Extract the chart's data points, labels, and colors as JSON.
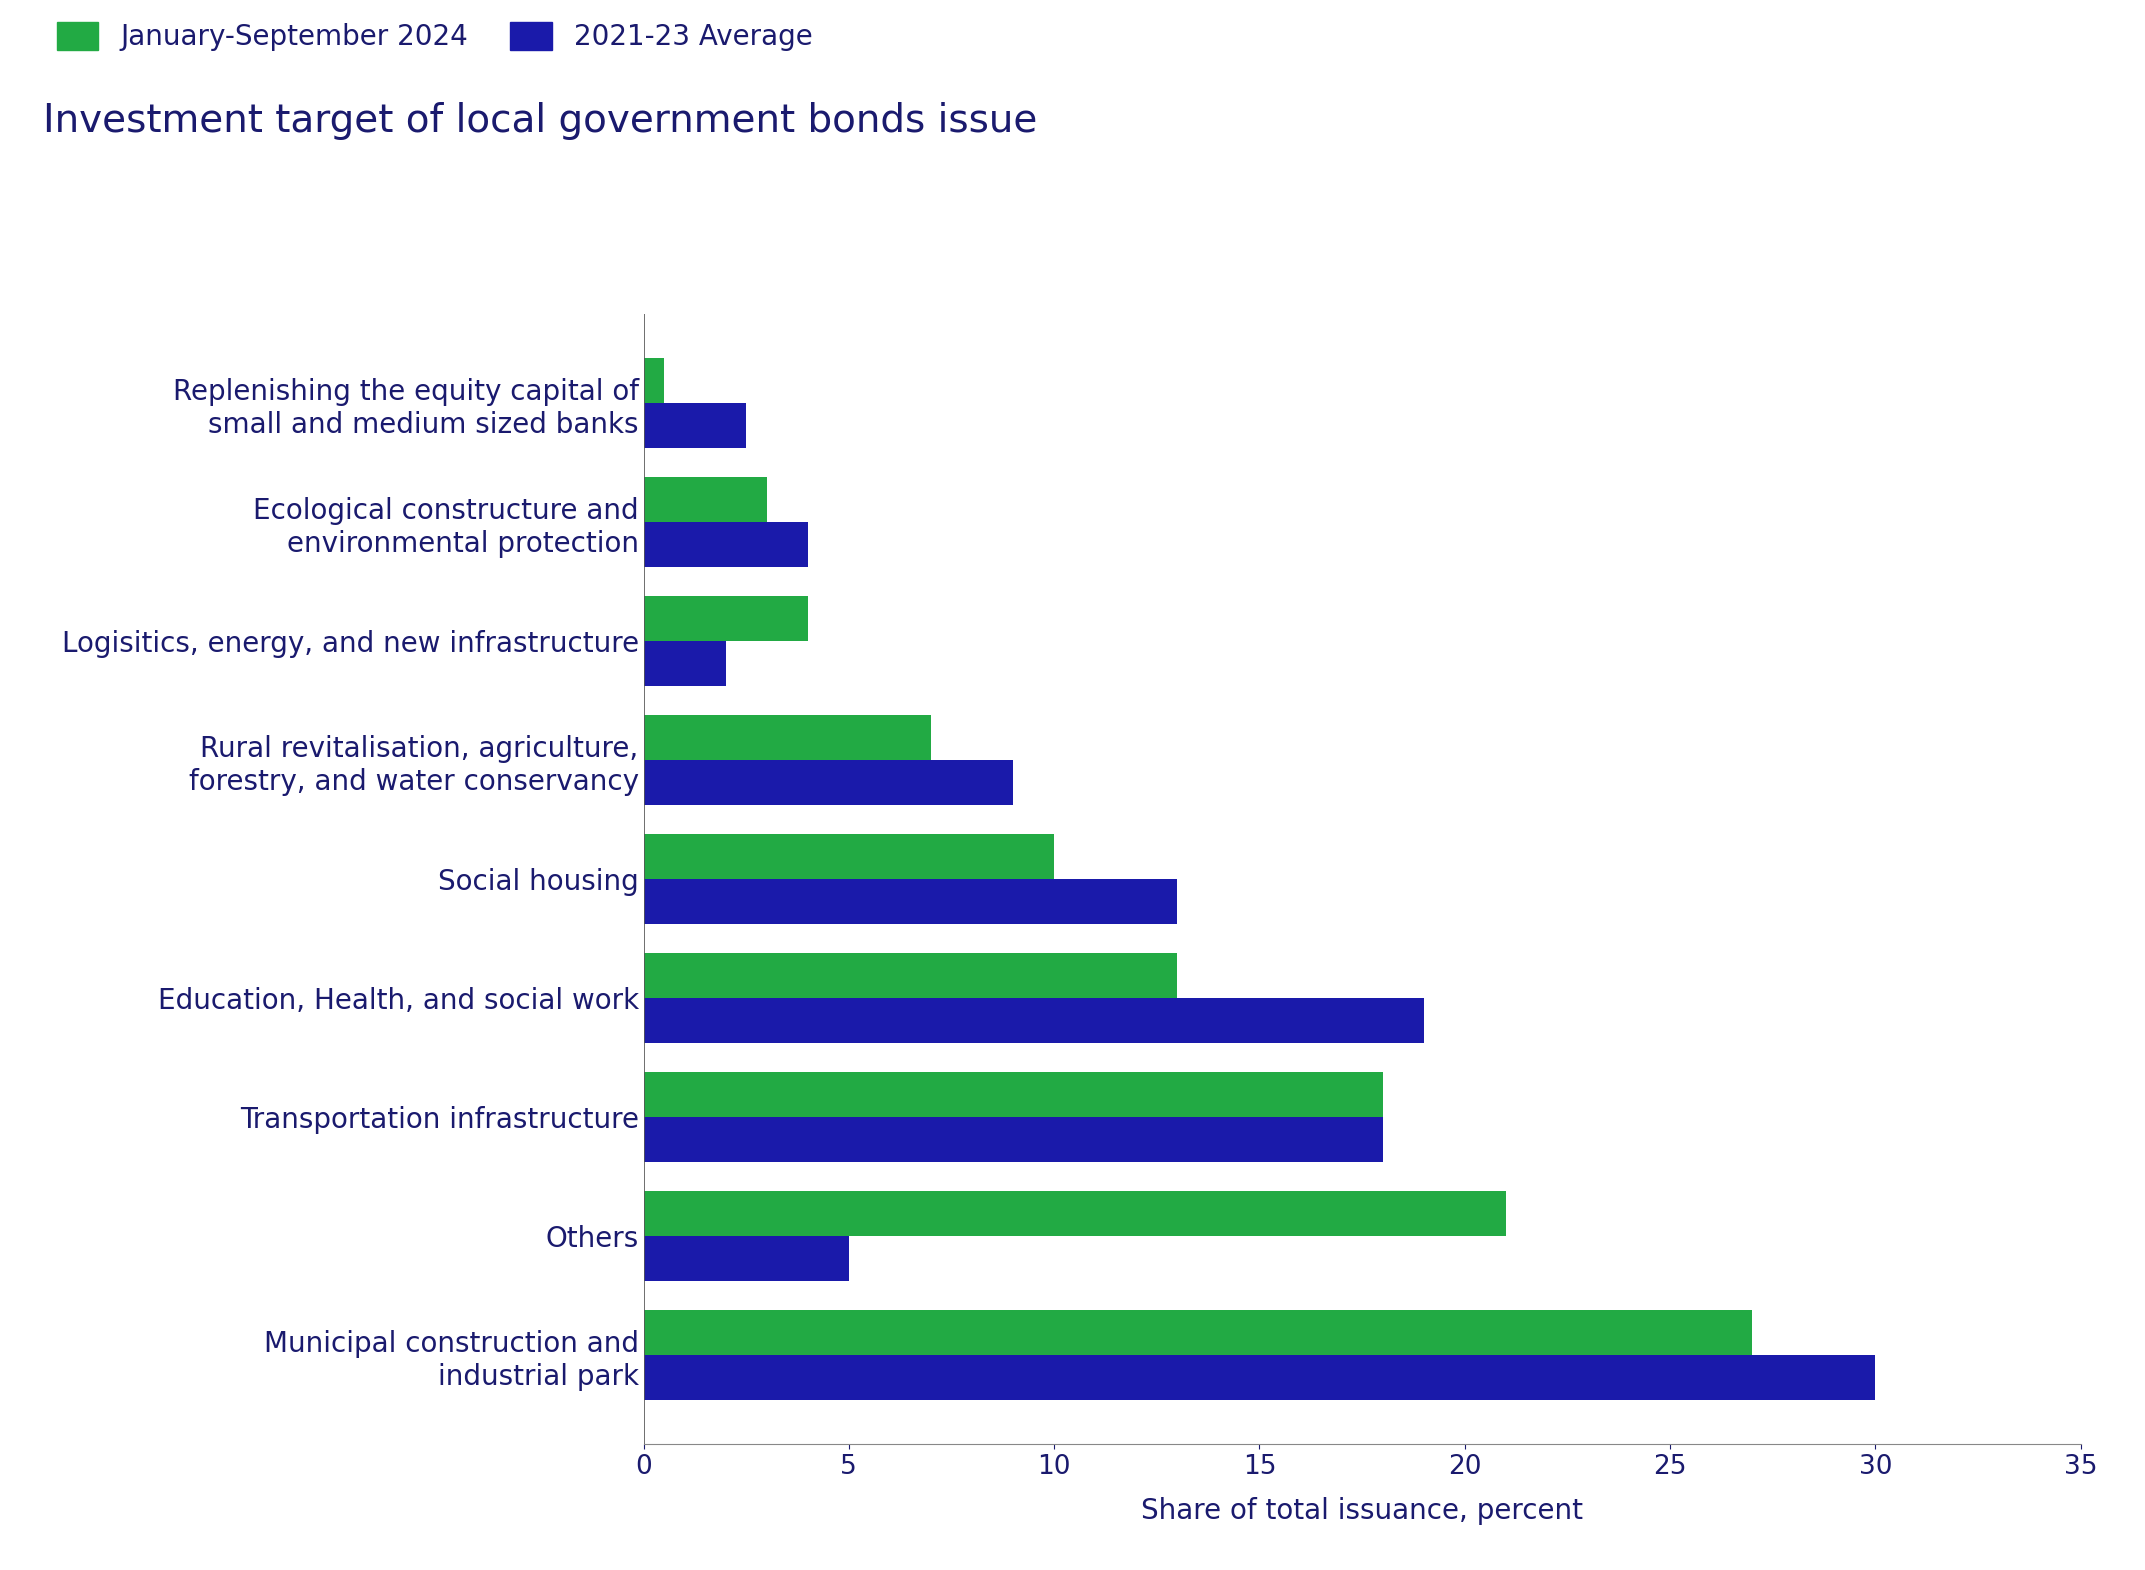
{
  "categories": [
    "Municipal construction and\nindustrial park",
    "Others",
    "Transportation infrastructure",
    "Education, Health, and social work",
    "Social housing",
    "Rural revitalisation, agriculture,\nforestry, and water conservancy",
    "Logisitics, energy, and new infrastructure",
    "Ecological constructure and\nenvironmental protection",
    "Replenishing the equity capital of\nsmall and medium sized banks"
  ],
  "green_values": [
    27.0,
    21.0,
    18.0,
    13.0,
    10.0,
    7.0,
    4.0,
    3.0,
    0.5
  ],
  "blue_values": [
    30.0,
    5.0,
    18.0,
    19.0,
    13.0,
    9.0,
    2.0,
    4.0,
    2.5
  ],
  "green_color": "#22aa44",
  "blue_color": "#1a1aaa",
  "text_color": "#1a1a6e",
  "title": "Investment target of local government bonds issue",
  "xlabel": "Share of total issuance, percent",
  "xlim": [
    0,
    35
  ],
  "xticks": [
    0,
    5,
    10,
    15,
    20,
    25,
    30,
    35
  ],
  "legend_green": "January-September 2024",
  "legend_blue": "2021-23 Average",
  "background_color": "#ffffff",
  "title_fontsize": 28,
  "label_fontsize": 20,
  "tick_fontsize": 19,
  "legend_fontsize": 20,
  "xlabel_fontsize": 20
}
